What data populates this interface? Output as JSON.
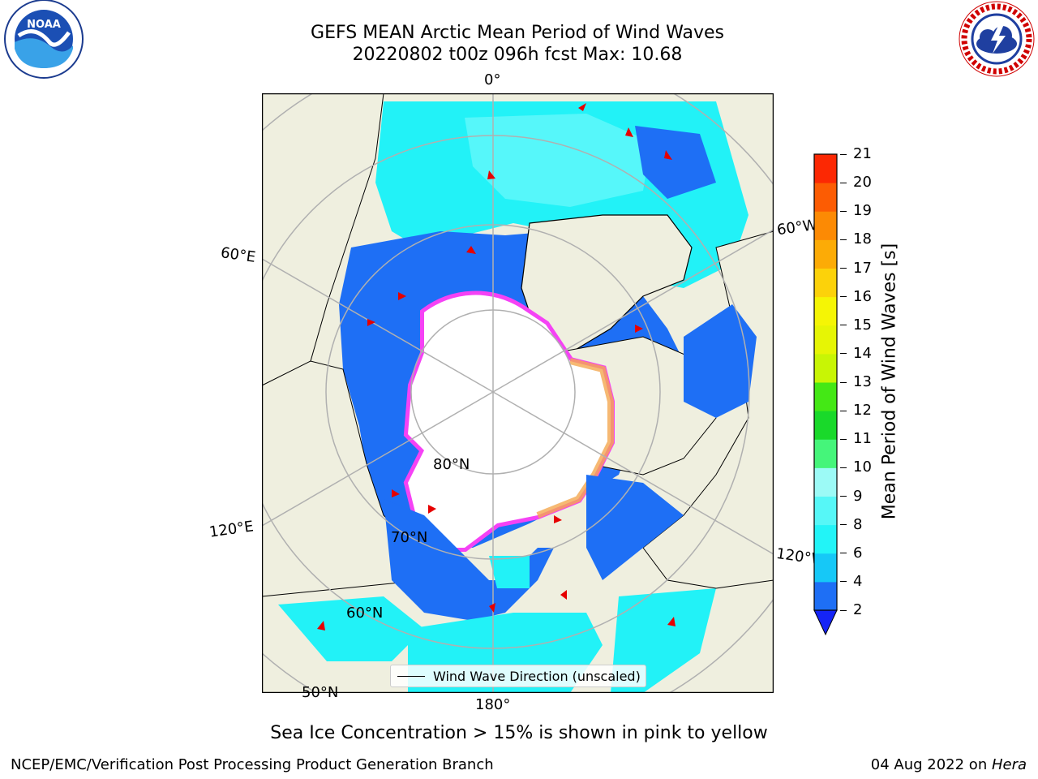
{
  "header": {
    "title_line1": "GEFS MEAN Arctic Mean Period of Wind Waves",
    "title_line2": "20220802 t00z 096h fcst   Max: 10.68"
  },
  "logos": {
    "left": "NOAA",
    "right": "NATIONAL WEATHER SERVICE"
  },
  "map": {
    "projection": "north-polar-stereographic",
    "colors": {
      "land": "#efefdf",
      "ocean_blue": "#2f6cf5",
      "cyan": "#19f2f7",
      "light_cyan": "#5ff6fa",
      "ice_pink": "#f542f5",
      "ice_orange": "#f4a750"
    },
    "grid_labels": {
      "lon_0": "0°",
      "lon_60e": "60°E",
      "lon_60w": "60°W",
      "lon_120e": "120°E",
      "lon_120w": "120°W",
      "lon_180": "180°",
      "lat_80": "80°N",
      "lat_70": "70°N",
      "lat_60": "60°N",
      "lat_50": "50°N"
    },
    "legend_label": "Wind Wave Direction (unscaled)"
  },
  "colorbar": {
    "label": "Mean Period of Wind Waves [s]",
    "ticks": [
      "2",
      "4",
      "6",
      "8",
      "9",
      "10",
      "11",
      "12",
      "13",
      "14",
      "15",
      "16",
      "17",
      "18",
      "19",
      "20",
      "21"
    ],
    "bins": [
      {
        "color": "#1e6ff5"
      },
      {
        "color": "#16c8f7"
      },
      {
        "color": "#22f4f7"
      },
      {
        "color": "#56f7f7"
      },
      {
        "color": "#9cfaf6"
      },
      {
        "color": "#45f57a"
      },
      {
        "color": "#19d92a"
      },
      {
        "color": "#44e815"
      },
      {
        "color": "#c8f505"
      },
      {
        "color": "#e6f505"
      },
      {
        "color": "#f5f505"
      },
      {
        "color": "#fcd20a"
      },
      {
        "color": "#fcab06"
      },
      {
        "color": "#fc8a04"
      },
      {
        "color": "#fc5c03"
      },
      {
        "color": "#fc2803"
      }
    ],
    "under_color": "#1524f7"
  },
  "footer": {
    "note": "Sea Ice Concentration > 15% is shown in pink to yellow",
    "left": "NCEP/EMC/Verification Post Processing Product Generation Branch",
    "right_date": "04 Aug 2022 on ",
    "right_host": "Hera"
  }
}
